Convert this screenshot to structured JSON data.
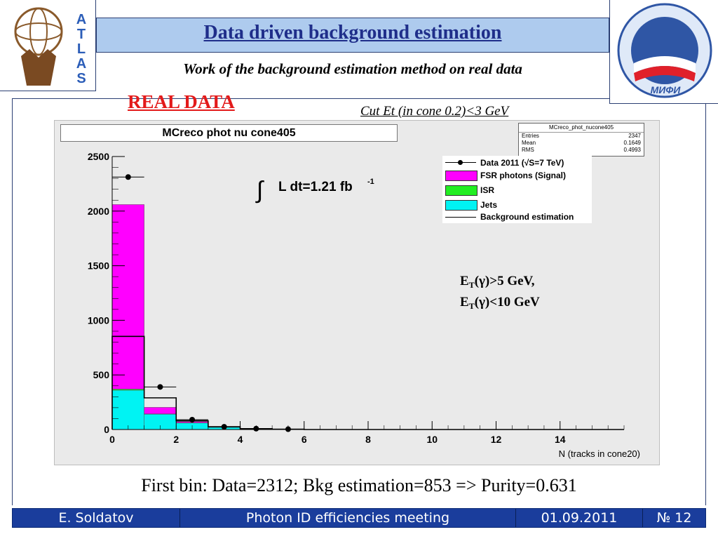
{
  "slide": {
    "title": "Data driven background estimation",
    "subtitle": "Work of the background estimation method on real data",
    "real_data_label": "REAL DATA",
    "cut_label": "Cut Et (in cone 0.2)<3 GeV",
    "bottom_note": "First bin: Data=2312; Bkg estimation=853 => Purity=0.631"
  },
  "logos": {
    "atlas_letters": [
      "A",
      "T",
      "L",
      "A",
      "S"
    ],
    "mephi_text": "МИФИ"
  },
  "stats": {
    "name": "MCreco_phot_nucone405",
    "rows": [
      {
        "label": "Entries",
        "value": "2347"
      },
      {
        "label": "Mean",
        "value": "0.1649"
      },
      {
        "label": "RMS",
        "value": "0.4993"
      }
    ]
  },
  "annotations": {
    "lumi_text": "L dt=1.21 fb",
    "lumi_exp": "-1",
    "integral_symbol": "∫",
    "cut1_pre": "E",
    "cut1_sub": "T",
    "cut1_post": "(γ)>5 GeV,",
    "cut2_pre": "E",
    "cut2_sub": "T",
    "cut2_post": "(γ)<10 GeV"
  },
  "legend": [
    {
      "label": "Data 2011 (√S=7 TeV)",
      "kind": "marker",
      "color": "#000000"
    },
    {
      "label": "FSR photons (Signal)",
      "kind": "fill",
      "color": "#ff00ff"
    },
    {
      "label": "ISR",
      "kind": "fill",
      "color": "#22ee22"
    },
    {
      "label": "Jets",
      "kind": "fill",
      "color": "#00f3f3"
    },
    {
      "label": "Background estimation",
      "kind": "line",
      "color": "#000000"
    }
  ],
  "chart_data": {
    "type": "bar",
    "title": "MCreco phot nu cone405",
    "xlabel": "N (tracks in cone20)",
    "ylabel": "",
    "xlim": [
      0,
      16
    ],
    "ylim": [
      0,
      2500
    ],
    "x_ticks": [
      0,
      2,
      4,
      6,
      8,
      10,
      12,
      14
    ],
    "y_ticks": [
      0,
      500,
      1000,
      1500,
      2000,
      2500
    ],
    "bin_edges": [
      0,
      1,
      2,
      3,
      4,
      5,
      6,
      7,
      8,
      9,
      10,
      11,
      12,
      13,
      14,
      15,
      16
    ],
    "stack": [
      {
        "name": "Jets",
        "color": "#00f3f3",
        "values": [
          360,
          140,
          60,
          20,
          5,
          2,
          0,
          0,
          0,
          0,
          0,
          0,
          0,
          0,
          0,
          0
        ]
      },
      {
        "name": "ISR",
        "color": "#22ee22",
        "values": [
          10,
          3,
          2,
          1,
          0,
          0,
          0,
          0,
          0,
          0,
          0,
          0,
          0,
          0,
          0,
          0
        ]
      },
      {
        "name": "FSR photons (Signal)",
        "color": "#ff00ff",
        "values": [
          1690,
          60,
          10,
          5,
          2,
          0,
          0,
          0,
          0,
          0,
          0,
          0,
          0,
          0,
          0,
          0
        ]
      }
    ],
    "background_estimation": {
      "name": "Background estimation",
      "values": [
        853,
        290,
        80,
        25,
        8,
        3,
        0,
        0,
        0,
        0,
        0,
        0,
        0,
        0,
        0,
        0
      ]
    },
    "data": {
      "name": "Data 2011 (√S=7 TeV)",
      "x": [
        0.5,
        1.5,
        2.5,
        3.5,
        4.5,
        5.5
      ],
      "y": [
        2312,
        390,
        90,
        25,
        8,
        3
      ]
    },
    "grid": false,
    "legend_position": "top-right"
  },
  "footer": {
    "author": "E. Soldatov",
    "meeting": "Photon ID efficiencies meeting",
    "date": "01.09.2011",
    "page": "№ 12"
  }
}
